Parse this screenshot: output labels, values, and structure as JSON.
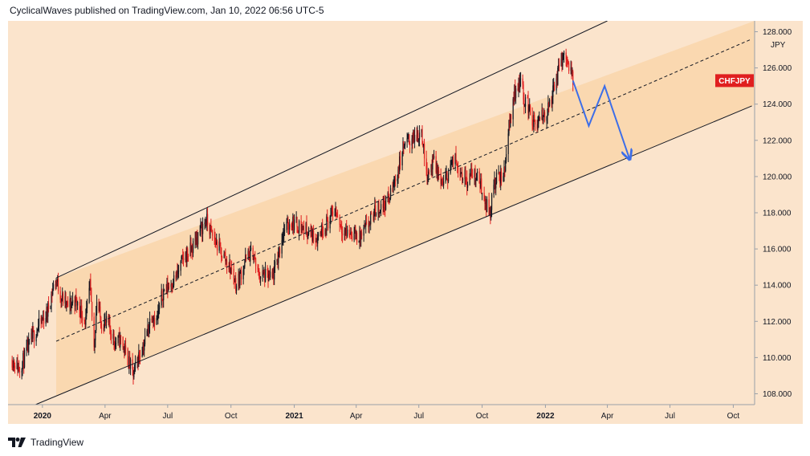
{
  "header": {
    "publish_line": "CyclicalWaves published on TradingView.com, Jan 10, 2022 06:56 UTC-5"
  },
  "footer": {
    "brand": "TradingView"
  },
  "colors": {
    "background_outer": "#fbe4cc",
    "channel_fill": "#fad8b0",
    "price_up": "#131722",
    "price_down": "#e01f1f",
    "projection": "#3d6ee8",
    "label_bg": "#e01f1f"
  },
  "chart_data": {
    "type": "candlestick",
    "symbol_label": "CHFJPY",
    "currency": "JPY",
    "last_value": 125.3,
    "ylim": [
      107.4,
      128.6
    ],
    "y_ticks": [
      "128.000",
      "126.000",
      "124.000",
      "122.000",
      "120.000",
      "118.000",
      "116.000",
      "114.000",
      "112.000",
      "110.000",
      "108.000"
    ],
    "x_ticks": [
      {
        "label": "2020",
        "bold": true
      },
      {
        "label": "Apr",
        "bold": false
      },
      {
        "label": "Jul",
        "bold": false
      },
      {
        "label": "Oct",
        "bold": false
      },
      {
        "label": "2021",
        "bold": true
      },
      {
        "label": "Apr",
        "bold": false
      },
      {
        "label": "Jul",
        "bold": false
      },
      {
        "label": "Oct",
        "bold": false
      },
      {
        "label": "2022",
        "bold": true
      },
      {
        "label": "Apr",
        "bold": false
      },
      {
        "label": "Jul",
        "bold": false
      },
      {
        "label": "Oct",
        "bold": false
      }
    ],
    "price_path": [
      [
        "2019-11-18",
        109.9
      ],
      [
        "2019-11-28",
        109.4
      ],
      [
        "2019-12-05",
        109.9
      ],
      [
        "2019-12-12",
        110.6
      ],
      [
        "2019-12-20",
        111.3
      ],
      [
        "2019-12-31",
        112.0
      ],
      [
        "2020-01-08",
        112.5
      ],
      [
        "2020-01-16",
        113.8
      ],
      [
        "2020-01-21",
        114.3
      ],
      [
        "2020-01-29",
        113.3
      ],
      [
        "2020-02-07",
        112.8
      ],
      [
        "2020-02-17",
        113.2
      ],
      [
        "2020-02-26",
        112.6
      ],
      [
        "2020-03-04",
        112.0
      ],
      [
        "2020-03-10",
        114.0
      ],
      [
        "2020-03-16",
        110.5
      ],
      [
        "2020-03-20",
        113.2
      ],
      [
        "2020-03-26",
        112.0
      ],
      [
        "2020-04-06",
        111.8
      ],
      [
        "2020-04-16",
        110.8
      ],
      [
        "2020-04-24",
        111.0
      ],
      [
        "2020-05-05",
        109.8
      ],
      [
        "2020-05-12",
        109.0
      ],
      [
        "2020-05-19",
        110.0
      ],
      [
        "2020-05-28",
        110.8
      ],
      [
        "2020-06-08",
        112.5
      ],
      [
        "2020-06-15",
        112.0
      ],
      [
        "2020-06-24",
        113.6
      ],
      [
        "2020-07-03",
        114.0
      ],
      [
        "2020-07-14",
        114.5
      ],
      [
        "2020-07-24",
        115.5
      ],
      [
        "2020-08-05",
        116.0
      ],
      [
        "2020-08-17",
        117.0
      ],
      [
        "2020-08-26",
        117.6
      ],
      [
        "2020-09-03",
        116.8
      ],
      [
        "2020-09-14",
        116.0
      ],
      [
        "2020-09-22",
        115.5
      ],
      [
        "2020-10-02",
        114.8
      ],
      [
        "2020-10-09",
        114.0
      ],
      [
        "2020-10-15",
        114.6
      ],
      [
        "2020-10-23",
        115.5
      ],
      [
        "2020-11-02",
        115.8
      ],
      [
        "2020-11-09",
        114.6
      ],
      [
        "2020-11-19",
        114.5
      ],
      [
        "2020-11-30",
        114.3
      ],
      [
        "2020-12-08",
        115.5
      ],
      [
        "2020-12-16",
        117.0
      ],
      [
        "2020-12-28",
        117.5
      ],
      [
        "2021-01-08",
        117.3
      ],
      [
        "2021-01-20",
        117.0
      ],
      [
        "2021-02-02",
        116.6
      ],
      [
        "2021-02-10",
        117.1
      ],
      [
        "2021-02-22",
        117.7
      ],
      [
        "2021-03-01",
        118.2
      ],
      [
        "2021-03-10",
        117.3
      ],
      [
        "2021-03-17",
        116.9
      ],
      [
        "2021-03-26",
        116.9
      ],
      [
        "2021-04-06",
        116.6
      ],
      [
        "2021-04-20",
        117.4
      ],
      [
        "2021-04-30",
        118.2
      ],
      [
        "2021-05-10",
        118.4
      ],
      [
        "2021-05-20",
        118.9
      ],
      [
        "2021-05-31",
        120.2
      ],
      [
        "2021-06-08",
        121.6
      ],
      [
        "2021-06-16",
        122.0
      ],
      [
        "2021-06-28",
        122.2
      ],
      [
        "2021-07-05",
        122.6
      ],
      [
        "2021-07-09",
        121.0
      ],
      [
        "2021-07-14",
        120.2
      ],
      [
        "2021-07-22",
        120.8
      ],
      [
        "2021-07-30",
        120.0
      ],
      [
        "2021-08-06",
        119.5
      ],
      [
        "2021-08-16",
        120.6
      ],
      [
        "2021-08-23",
        120.9
      ],
      [
        "2021-08-31",
        120.3
      ],
      [
        "2021-09-09",
        119.8
      ],
      [
        "2021-09-17",
        120.2
      ],
      [
        "2021-09-27",
        119.8
      ],
      [
        "2021-10-06",
        118.6
      ],
      [
        "2021-10-12",
        117.9
      ],
      [
        "2021-10-18",
        119.5
      ],
      [
        "2021-10-25",
        120.0
      ],
      [
        "2021-11-01",
        119.9
      ],
      [
        "2021-11-08",
        122.5
      ],
      [
        "2021-11-16",
        124.5
      ],
      [
        "2021-11-25",
        125.4
      ],
      [
        "2021-12-01",
        124.3
      ],
      [
        "2021-12-08",
        123.8
      ],
      [
        "2021-12-14",
        123.0
      ],
      [
        "2021-12-20",
        122.8
      ],
      [
        "2021-12-28",
        123.3
      ],
      [
        "2022-01-04",
        123.6
      ],
      [
        "2022-01-11",
        124.5
      ],
      [
        "2022-01-18",
        125.5
      ],
      [
        "2022-01-24",
        126.4
      ],
      [
        "2022-01-28",
        126.8
      ],
      [
        "2022-02-02",
        126.4
      ],
      [
        "2022-02-07",
        125.8
      ],
      [
        "2022-02-10",
        125.3
      ]
    ],
    "channel": {
      "upper": {
        "from": [
          "2020-01-21",
          114.4
        ],
        "to": [
          "2022-04-01",
          128.6
        ]
      },
      "lower": {
        "from": [
          "2019-12-22",
          107.4
        ],
        "to": [
          "2022-10-28",
          123.9
        ]
      },
      "mid": {
        "from": [
          "2020-01-21",
          110.9
        ],
        "to": [
          "2022-10-28",
          127.6
        ]
      },
      "fill_start": "2020-01-21"
    },
    "projection": [
      [
        "2022-02-10",
        125.3
      ],
      [
        "2022-03-05",
        122.8
      ],
      [
        "2022-03-28",
        125.0
      ],
      [
        "2022-05-03",
        121.0
      ]
    ],
    "grid": false,
    "legend": "none"
  }
}
